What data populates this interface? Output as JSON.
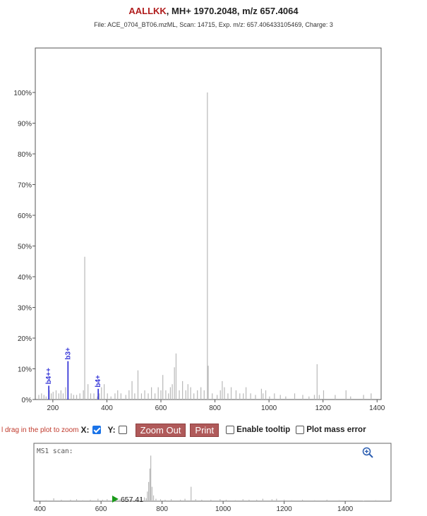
{
  "header": {
    "sequence": "AALLKK",
    "rest": ", MH+ 1970.2048, m/z 657.4064",
    "subtitle": "File: ACE_0704_BT06.mzML, Scan: 14715, Exp. m/z: 657.406433105469, Charge: 3"
  },
  "controls": {
    "hint": "l drag in the plot to zoom",
    "x_label": "X:",
    "y_label": "Y:",
    "x_checked": true,
    "y_checked": false,
    "zoom_out": "Zoom Out",
    "print": "Print",
    "tooltip": "Enable tooltip",
    "mass_error": "Plot mass error"
  },
  "ms1": {
    "label": "MS1 scan:",
    "precursor_label": "657.41"
  },
  "colors": {
    "peak": "#b8b8b8",
    "annotated": "#3a3ad8",
    "precursor": "#1a9a1a",
    "title_seq": "#b01c1c",
    "button": "#b05a5a"
  },
  "chart_data": [
    {
      "type": "bar",
      "name": "MS2 spectrum",
      "xlim": [
        135,
        1415
      ],
      "ylim": [
        0,
        100
      ],
      "x_ticks": [
        200,
        400,
        600,
        800,
        1000,
        1200,
        1400
      ],
      "y_ticks": [
        "0%",
        "10%",
        "20%",
        "30%",
        "40%",
        "50%",
        "60%",
        "70%",
        "80%",
        "90%",
        "100%"
      ],
      "peaks": [
        [
          148,
          1.5
        ],
        [
          158,
          2
        ],
        [
          167,
          1.5
        ],
        [
          175,
          1
        ],
        [
          187,
          3
        ],
        [
          194,
          2
        ],
        [
          201,
          2.5
        ],
        [
          212,
          3
        ],
        [
          222,
          2
        ],
        [
          230,
          3
        ],
        [
          238,
          2
        ],
        [
          247,
          4
        ],
        [
          268,
          2
        ],
        [
          277,
          1.5
        ],
        [
          288,
          1.5
        ],
        [
          300,
          2
        ],
        [
          313,
          3
        ],
        [
          318,
          46.5
        ],
        [
          330,
          5
        ],
        [
          340,
          2
        ],
        [
          352,
          2
        ],
        [
          365,
          1
        ],
        [
          372,
          2
        ],
        [
          380,
          4
        ],
        [
          390,
          5
        ],
        [
          402,
          2
        ],
        [
          415,
          1
        ],
        [
          430,
          2
        ],
        [
          440,
          3
        ],
        [
          452,
          2
        ],
        [
          470,
          1.5
        ],
        [
          482,
          3
        ],
        [
          493,
          6
        ],
        [
          503,
          2
        ],
        [
          515,
          9.5
        ],
        [
          528,
          2
        ],
        [
          540,
          3
        ],
        [
          553,
          2
        ],
        [
          565,
          4
        ],
        [
          578,
          2
        ],
        [
          590,
          4
        ],
        [
          600,
          3
        ],
        [
          607,
          8
        ],
        [
          618,
          3
        ],
        [
          628,
          2
        ],
        [
          635,
          4
        ],
        [
          642,
          5
        ],
        [
          650,
          10.5
        ],
        [
          656,
          15
        ],
        [
          668,
          3
        ],
        [
          680,
          6
        ],
        [
          692,
          3
        ],
        [
          700,
          5
        ],
        [
          710,
          4
        ],
        [
          722,
          2
        ],
        [
          735,
          3
        ],
        [
          748,
          4
        ],
        [
          760,
          3
        ],
        [
          772,
          100
        ],
        [
          775,
          11
        ],
        [
          790,
          2
        ],
        [
          808,
          1.5
        ],
        [
          820,
          3
        ],
        [
          827,
          6
        ],
        [
          835,
          4
        ],
        [
          848,
          2
        ],
        [
          860,
          4
        ],
        [
          878,
          3
        ],
        [
          892,
          2
        ],
        [
          905,
          2
        ],
        [
          915,
          4
        ],
        [
          932,
          2
        ],
        [
          950,
          1.5
        ],
        [
          972,
          3.5
        ],
        [
          978,
          2
        ],
        [
          988,
          3
        ],
        [
          1002,
          1
        ],
        [
          1020,
          2
        ],
        [
          1042,
          1.5
        ],
        [
          1062,
          1
        ],
        [
          1095,
          2
        ],
        [
          1125,
          1.5
        ],
        [
          1148,
          1
        ],
        [
          1168,
          1.5
        ],
        [
          1178,
          11.5
        ],
        [
          1186,
          1.5
        ],
        [
          1202,
          3
        ],
        [
          1245,
          1.5
        ],
        [
          1285,
          3
        ],
        [
          1302,
          1
        ],
        [
          1350,
          1.5
        ],
        [
          1378,
          2
        ]
      ],
      "annotations": [
        {
          "label": "b4++",
          "x": 185,
          "y": 4.5
        },
        {
          "label": "b3+",
          "x": 256,
          "y": 12.5
        },
        {
          "label": "b4+",
          "x": 368,
          "y": 3.5
        }
      ]
    },
    {
      "type": "bar",
      "name": "MS1 scan",
      "xlim": [
        380,
        1550
      ],
      "ylim": [
        0,
        100
      ],
      "x_ticks": [
        400,
        600,
        800,
        1000,
        1200,
        1400
      ],
      "peaks": [
        [
          420,
          2
        ],
        [
          445,
          6
        ],
        [
          470,
          3
        ],
        [
          500,
          3
        ],
        [
          520,
          4
        ],
        [
          540,
          2
        ],
        [
          565,
          3
        ],
        [
          590,
          5
        ],
        [
          605,
          3
        ],
        [
          620,
          4
        ],
        [
          640,
          3
        ],
        [
          662,
          4
        ],
        [
          680,
          6
        ],
        [
          700,
          4
        ],
        [
          715,
          3
        ],
        [
          730,
          5
        ],
        [
          742,
          8
        ],
        [
          748,
          6
        ],
        [
          752,
          20
        ],
        [
          756,
          40
        ],
        [
          760,
          68
        ],
        [
          763,
          95
        ],
        [
          767,
          30
        ],
        [
          772,
          12
        ],
        [
          780,
          5
        ],
        [
          795,
          4
        ],
        [
          810,
          3
        ],
        [
          830,
          4
        ],
        [
          860,
          3
        ],
        [
          875,
          5
        ],
        [
          895,
          30
        ],
        [
          910,
          4
        ],
        [
          930,
          3
        ],
        [
          960,
          3
        ],
        [
          990,
          4
        ],
        [
          1010,
          3
        ],
        [
          1040,
          2
        ],
        [
          1065,
          4
        ],
        [
          1085,
          3
        ],
        [
          1110,
          3
        ],
        [
          1130,
          5
        ],
        [
          1160,
          4
        ],
        [
          1175,
          5
        ],
        [
          1200,
          3
        ],
        [
          1225,
          2
        ],
        [
          1260,
          3
        ],
        [
          1300,
          2
        ],
        [
          1340,
          3
        ],
        [
          1380,
          2
        ],
        [
          1420,
          2
        ],
        [
          1460,
          1
        ],
        [
          1500,
          2
        ]
      ],
      "precursor_mz": 657.41
    }
  ]
}
